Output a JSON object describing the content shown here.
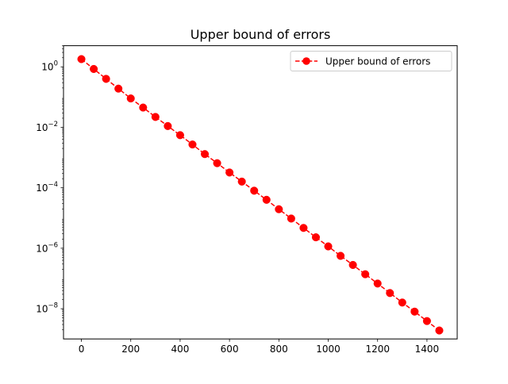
{
  "chart_data": {
    "type": "line",
    "title": "Upper bound of errors",
    "xlabel": "",
    "ylabel": "",
    "yscale": "log",
    "xlim": [
      -72.5,
      1522.5
    ],
    "ylim": [
      1e-09,
      5.0
    ],
    "x_ticks": [
      {
        "value": 0,
        "label": "0"
      },
      {
        "value": 200,
        "label": "200"
      },
      {
        "value": 400,
        "label": "400"
      },
      {
        "value": 600,
        "label": "600"
      },
      {
        "value": 800,
        "label": "800"
      },
      {
        "value": 1000,
        "label": "1000"
      },
      {
        "value": 1200,
        "label": "1200"
      },
      {
        "value": 1400,
        "label": "1400"
      }
    ],
    "y_ticks": [
      {
        "value": 1,
        "base": "10",
        "exp": "0"
      },
      {
        "value": 0.01,
        "base": "10",
        "exp": "−2"
      },
      {
        "value": 0.0001,
        "base": "10",
        "exp": "−4"
      },
      {
        "value": 1e-06,
        "base": "10",
        "exp": "−6"
      },
      {
        "value": 1e-08,
        "base": "10",
        "exp": "−8"
      }
    ],
    "grid": false,
    "legend": {
      "position": "top-right"
    },
    "series": [
      {
        "name": "Upper bound of errors",
        "color": "#ff0000",
        "line_style": "dashed",
        "marker": "circle",
        "x": [
          0,
          50,
          100,
          150,
          200,
          250,
          300,
          350,
          400,
          450,
          500,
          550,
          600,
          650,
          700,
          750,
          800,
          850,
          900,
          950,
          1000,
          1050,
          1100,
          1150,
          1200,
          1250,
          1300,
          1350,
          1400,
          1450
        ],
        "y": [
          1.8,
          0.85,
          0.4,
          0.19,
          0.09,
          0.045,
          0.022,
          0.011,
          0.0055,
          0.0027,
          0.0013,
          0.00065,
          0.00032,
          0.00016,
          8e-05,
          4e-05,
          1.95e-05,
          9.6e-06,
          4.7e-06,
          2.3e-06,
          1.15e-06,
          5.6e-07,
          2.8e-07,
          1.38e-07,
          6.8e-08,
          3.3e-08,
          1.6e-08,
          8e-09,
          3.9e-09,
          1.9e-09
        ]
      }
    ]
  }
}
